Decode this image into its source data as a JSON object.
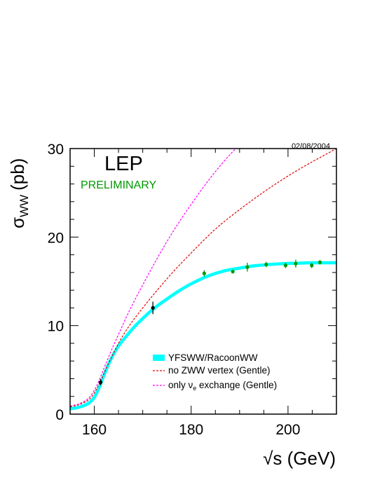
{
  "chart_data": {
    "type": "line",
    "title": "LEP",
    "subtitle": "PRELIMINARY",
    "date": "02/08/2004",
    "xlabel": "√s (GeV)",
    "ylabel": "σWW (pb)",
    "ylabel_main": "σ",
    "ylabel_sub": "WW",
    "ylabel_unit": "(pb)",
    "xlim": [
      155,
      210
    ],
    "ylim": [
      0,
      30
    ],
    "xticks": [
      "160",
      "180",
      "200"
    ],
    "yticks": [
      "0",
      "10",
      "20",
      "30"
    ],
    "grid": false,
    "legend_position": "bottom-right",
    "series": [
      {
        "name": "YFSWW/RacoonWW",
        "style": "band",
        "color": "#00ffff",
        "x": [
          155,
          157,
          159,
          160,
          161,
          162,
          163,
          164,
          165,
          166,
          168,
          170,
          172,
          175,
          178,
          181,
          184,
          187,
          190,
          193,
          196,
          199,
          202,
          205,
          208,
          210
        ],
        "y": [
          0.6,
          0.8,
          1.3,
          1.9,
          3.0,
          4.4,
          5.7,
          6.8,
          7.7,
          8.4,
          9.7,
          10.8,
          11.8,
          13.0,
          14.1,
          15.0,
          15.7,
          16.2,
          16.5,
          16.75,
          16.9,
          17.0,
          17.05,
          17.1,
          17.1,
          17.1
        ]
      },
      {
        "name": "no ZWW vertex (Gentle)",
        "style": "dashed",
        "color": "#e00000",
        "x": [
          155,
          157,
          159,
          160,
          161,
          162,
          163,
          164,
          165,
          167,
          170,
          173,
          176,
          180,
          185,
          190,
          195,
          200,
          205,
          210
        ],
        "y": [
          0.8,
          1.1,
          1.7,
          2.4,
          3.4,
          4.6,
          5.8,
          6.9,
          8.0,
          9.8,
          12.0,
          14.0,
          15.9,
          18.2,
          20.9,
          23.1,
          25.1,
          26.9,
          28.5,
          30.0
        ]
      },
      {
        "name": "only νe exchange (Gentle)",
        "style": "dashed",
        "color": "#ff00ff",
        "x": [
          155,
          157,
          159,
          160,
          161,
          162,
          163,
          164,
          165,
          167,
          170,
          173,
          176,
          180,
          184,
          187,
          189.2
        ],
        "y": [
          0.9,
          1.2,
          1.9,
          2.7,
          3.8,
          5.2,
          6.5,
          7.8,
          9.0,
          11.4,
          14.6,
          17.6,
          20.4,
          23.7,
          26.7,
          28.7,
          30.0
        ]
      }
    ],
    "legend": [
      {
        "label_main": "YFSWW/RacoonWW",
        "label_sym": "",
        "label_sub": "",
        "label_rest": ""
      },
      {
        "label_main": "no ZWW vertex (Gentle)",
        "label_sym": "",
        "label_sub": "",
        "label_rest": ""
      },
      {
        "label_main": "only ",
        "label_sym": "ν",
        "label_sub": "e",
        "label_rest": " exchange (Gentle)"
      }
    ],
    "data_points": [
      {
        "x": 161.3,
        "y": 3.6,
        "yerr": 0.35,
        "color": "#000000"
      },
      {
        "x": 172.1,
        "y": 12.0,
        "yerr": 0.7,
        "color": "#000000"
      },
      {
        "x": 182.7,
        "y": 15.9,
        "yerr": 0.35,
        "color": "#009900"
      },
      {
        "x": 188.6,
        "y": 16.1,
        "yerr": 0.2,
        "color": "#009900"
      },
      {
        "x": 191.6,
        "y": 16.6,
        "yerr": 0.5,
        "color": "#009900"
      },
      {
        "x": 195.5,
        "y": 16.9,
        "yerr": 0.3,
        "color": "#009900"
      },
      {
        "x": 199.5,
        "y": 16.8,
        "yerr": 0.3,
        "color": "#009900"
      },
      {
        "x": 201.6,
        "y": 17.0,
        "yerr": 0.45,
        "color": "#009900"
      },
      {
        "x": 204.9,
        "y": 16.8,
        "yerr": 0.3,
        "color": "#009900"
      },
      {
        "x": 206.6,
        "y": 17.15,
        "yerr": 0.25,
        "color": "#009900"
      }
    ],
    "colors": {
      "title": "#000000",
      "subtitle": "#009900",
      "axis": "#000000"
    }
  }
}
